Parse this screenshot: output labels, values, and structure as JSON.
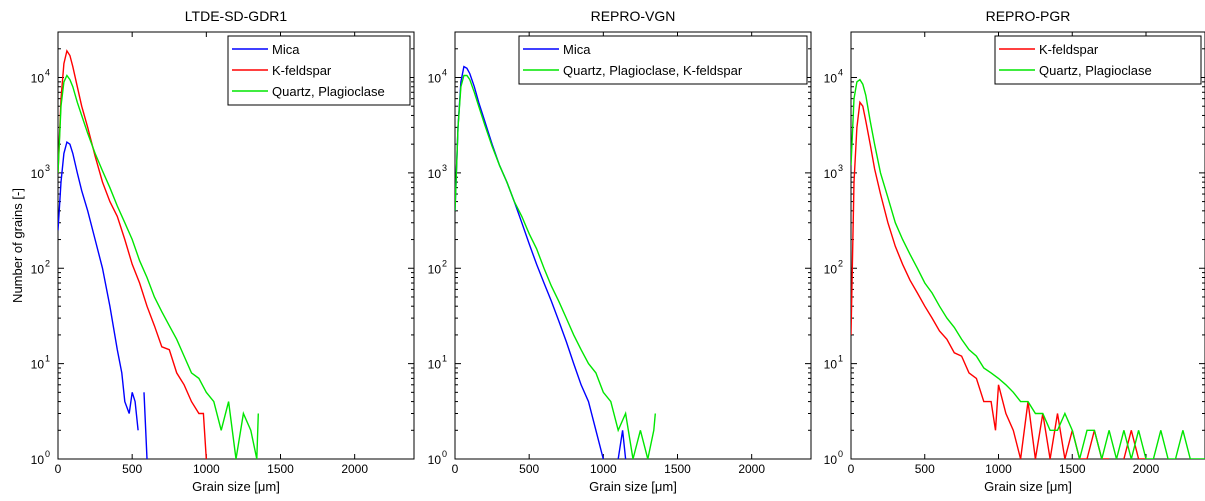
{
  "chart_data": [
    {
      "type": "line",
      "title": "LTDE-SD-GDR1",
      "xlabel": "Grain size [μm]",
      "ylabel": "Number of grains [-]",
      "xlim": [
        0,
        2400
      ],
      "ylim": [
        1,
        30000
      ],
      "yscale": "log",
      "x_ticks": [
        0,
        500,
        1000,
        1500,
        2000
      ],
      "y_ticks": [
        1,
        10,
        100,
        1000,
        10000
      ],
      "y_tick_labels": [
        {
          "b": "10",
          "e": "0"
        },
        {
          "b": "10",
          "e": "1"
        },
        {
          "b": "10",
          "e": "2"
        },
        {
          "b": "10",
          "e": "3"
        },
        {
          "b": "10",
          "e": "4"
        }
      ],
      "legend_position": "top-right",
      "series": [
        {
          "name": "Mica",
          "color": "#0000ff",
          "x": [
            0,
            20,
            40,
            60,
            80,
            100,
            130,
            160,
            200,
            250,
            300,
            350,
            400,
            430,
            450,
            480,
            500,
            520,
            540,
            560,
            580,
            600
          ],
          "y": [
            250,
            800,
            1600,
            2100,
            2000,
            1600,
            1000,
            650,
            400,
            200,
            100,
            40,
            14,
            8,
            4,
            3,
            5,
            4,
            2,
            null,
            5,
            1
          ]
        },
        {
          "name": "K-feldspar",
          "color": "#ff0000",
          "x": [
            0,
            20,
            40,
            60,
            80,
            100,
            130,
            160,
            200,
            250,
            300,
            350,
            400,
            450,
            500,
            550,
            600,
            650,
            700,
            750,
            800,
            850,
            900,
            950,
            980,
            1000
          ],
          "y": [
            1000,
            6000,
            14000,
            19000,
            17000,
            13000,
            8000,
            5000,
            3000,
            1500,
            800,
            500,
            350,
            200,
            110,
            70,
            40,
            25,
            15,
            14,
            8,
            6,
            4,
            3,
            3,
            1
          ]
        },
        {
          "name": "Quartz, Plagioclase",
          "color": "#00e600",
          "x": [
            0,
            20,
            40,
            60,
            80,
            100,
            130,
            160,
            200,
            250,
            300,
            350,
            400,
            450,
            500,
            550,
            600,
            650,
            700,
            750,
            800,
            850,
            900,
            950,
            1000,
            1050,
            1100,
            1150,
            1200,
            1250,
            1300,
            1340,
            1350
          ],
          "y": [
            1000,
            5000,
            9000,
            10500,
            9500,
            8000,
            5500,
            4000,
            2600,
            1600,
            1050,
            700,
            450,
            300,
            200,
            120,
            80,
            50,
            35,
            25,
            18,
            12,
            8,
            7,
            5,
            4,
            2,
            4,
            1,
            3,
            2,
            1,
            3
          ]
        }
      ]
    },
    {
      "type": "line",
      "title": "REPRO-VGN",
      "xlabel": "Grain size [μm]",
      "xlim": [
        0,
        2400
      ],
      "ylim": [
        1,
        30000
      ],
      "yscale": "log",
      "x_ticks": [
        0,
        500,
        1000,
        1500,
        2000
      ],
      "y_ticks": [
        1,
        10,
        100,
        1000,
        10000
      ],
      "y_tick_labels": [
        {
          "b": "10",
          "e": "0"
        },
        {
          "b": "10",
          "e": "1"
        },
        {
          "b": "10",
          "e": "2"
        },
        {
          "b": "10",
          "e": "3"
        },
        {
          "b": "10",
          "e": "4"
        }
      ],
      "legend_position": "top-right",
      "series": [
        {
          "name": "Mica",
          "color": "#0000ff",
          "x": [
            0,
            20,
            40,
            60,
            80,
            100,
            130,
            160,
            200,
            250,
            300,
            350,
            400,
            450,
            500,
            550,
            600,
            650,
            700,
            750,
            800,
            850,
            900,
            950,
            1000,
            1050,
            1100,
            1130,
            1150
          ],
          "y": [
            400,
            3000,
            9000,
            13000,
            12500,
            11000,
            8000,
            5500,
            3500,
            2000,
            1200,
            800,
            500,
            300,
            180,
            110,
            70,
            45,
            28,
            17,
            10,
            6,
            4,
            2,
            1,
            null,
            1,
            2,
            1
          ]
        },
        {
          "name": "Quartz, Plagioclase, K-feldspar",
          "color": "#00e600",
          "x": [
            0,
            20,
            40,
            60,
            80,
            100,
            130,
            160,
            200,
            250,
            300,
            350,
            400,
            450,
            500,
            550,
            600,
            650,
            700,
            750,
            800,
            850,
            900,
            950,
            1000,
            1050,
            1100,
            1150,
            1200,
            1250,
            1300,
            1340,
            1350
          ],
          "y": [
            400,
            3000,
            8000,
            10500,
            10500,
            9500,
            7000,
            5000,
            3200,
            1900,
            1200,
            800,
            500,
            350,
            230,
            160,
            100,
            65,
            45,
            30,
            20,
            14,
            10,
            8,
            5,
            4,
            2,
            3,
            1,
            2,
            1,
            2,
            3
          ]
        }
      ]
    },
    {
      "type": "line",
      "title": "REPRO-PGR",
      "xlabel": "Grain size [μm]",
      "xlim": [
        0,
        2400
      ],
      "ylim": [
        1,
        30000
      ],
      "yscale": "log",
      "x_ticks": [
        0,
        500,
        1000,
        1500,
        2000
      ],
      "y_ticks": [
        1,
        10,
        100,
        1000,
        10000
      ],
      "y_tick_labels": [
        {
          "b": "10",
          "e": "0"
        },
        {
          "b": "10",
          "e": "1"
        },
        {
          "b": "10",
          "e": "2"
        },
        {
          "b": "10",
          "e": "3"
        },
        {
          "b": "10",
          "e": "4"
        }
      ],
      "legend_position": "top-right",
      "series": [
        {
          "name": "K-feldspar",
          "color": "#ff0000",
          "x": [
            0,
            20,
            40,
            60,
            80,
            100,
            130,
            160,
            200,
            250,
            300,
            350,
            400,
            450,
            500,
            550,
            600,
            650,
            700,
            750,
            800,
            850,
            900,
            950,
            980,
            1000,
            1050,
            1100,
            1150,
            1200,
            1250,
            1300,
            1350,
            1400,
            1450,
            1500,
            1550,
            1600,
            1650,
            1700,
            1750,
            1800,
            1850,
            1900,
            1950,
            2000,
            2050,
            2100,
            2150,
            2200,
            2250,
            2300,
            2350,
            2400
          ],
          "y": [
            20,
            800,
            3000,
            5500,
            5000,
            3500,
            2000,
            1100,
            600,
            300,
            170,
            110,
            75,
            55,
            40,
            30,
            22,
            18,
            13,
            12,
            8,
            7,
            4,
            4,
            2,
            6,
            3,
            2,
            1,
            4,
            1,
            3,
            1,
            3,
            1,
            2,
            1,
            1,
            2,
            1,
            1,
            null,
            1,
            2,
            1,
            1,
            null,
            1,
            null,
            1,
            null,
            1,
            null,
            1
          ]
        },
        {
          "name": "Quartz, Plagioclase",
          "color": "#00e600",
          "x": [
            0,
            20,
            40,
            60,
            80,
            100,
            130,
            160,
            200,
            250,
            300,
            350,
            400,
            450,
            500,
            550,
            600,
            650,
            700,
            750,
            800,
            850,
            900,
            950,
            1000,
            1050,
            1100,
            1150,
            1200,
            1250,
            1300,
            1350,
            1400,
            1450,
            1500,
            1550,
            1600,
            1650,
            1700,
            1750,
            1800,
            1850,
            1900,
            1950,
            2000,
            2050,
            2100,
            2150,
            2200,
            2250,
            2300,
            2350,
            2400
          ],
          "y": [
            1200,
            6000,
            9000,
            9500,
            8500,
            6500,
            3500,
            2000,
            1000,
            550,
            300,
            200,
            140,
            100,
            70,
            55,
            40,
            30,
            24,
            18,
            14,
            12,
            9,
            8,
            7,
            6,
            5,
            4,
            4,
            3,
            3,
            2,
            2,
            3,
            2,
            1,
            2,
            2,
            1,
            2,
            1,
            2,
            1,
            2,
            1,
            1,
            2,
            1,
            1,
            2,
            1,
            1,
            1
          ]
        }
      ]
    }
  ]
}
